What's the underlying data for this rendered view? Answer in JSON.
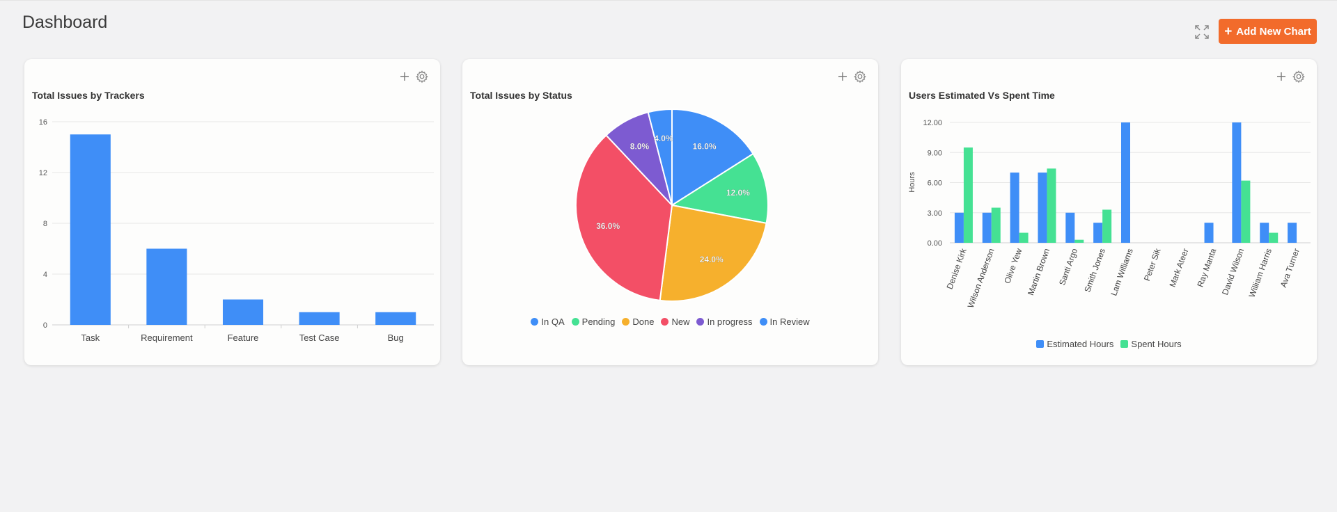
{
  "page": {
    "title": "Dashboard"
  },
  "toolbar": {
    "add_chart_label": "Add New Chart",
    "add_chart_icon": "plus-icon",
    "expand_icon": "expand-icon"
  },
  "colors": {
    "accent": "#f26b2b",
    "blue": "#3f8ef7",
    "green": "#45e193",
    "yellow": "#f6b02d",
    "red": "#f34f66",
    "purple": "#7d5bd1"
  },
  "cards": [
    {
      "title": "Total Issues by Trackers",
      "icons": [
        "plus-icon",
        "gear-icon"
      ]
    },
    {
      "title": "Total Issues by Status",
      "icons": [
        "plus-icon",
        "gear-icon"
      ]
    },
    {
      "title": "Users Estimated Vs Spent Time",
      "icons": [
        "plus-icon",
        "gear-icon"
      ]
    }
  ],
  "chart_data": [
    {
      "type": "bar",
      "title": "Total Issues by Trackers",
      "categories": [
        "Task",
        "Requirement",
        "Feature",
        "Test Case",
        "Bug"
      ],
      "values": [
        15,
        6,
        2,
        1,
        1
      ],
      "ylim": [
        0,
        16
      ],
      "yticks": [
        "0",
        "4",
        "8",
        "12",
        "16"
      ],
      "grid": true,
      "color": "#3f8ef7"
    },
    {
      "type": "pie",
      "title": "Total Issues by Status",
      "slices": [
        {
          "label": "In QA",
          "value": 16.0,
          "text": "16.0%",
          "color": "#3f8ef7"
        },
        {
          "label": "Pending",
          "value": 12.0,
          "text": "12.0%",
          "color": "#45e193"
        },
        {
          "label": "Done",
          "value": 24.0,
          "text": "24.0%",
          "color": "#f6b02d"
        },
        {
          "label": "New",
          "value": 36.0,
          "text": "36.0%",
          "color": "#f34f66"
        },
        {
          "label": "In progress",
          "value": 8.0,
          "text": "8.0%",
          "color": "#7d5bd1"
        },
        {
          "label": "In Review",
          "value": 4.0,
          "text": "4.0%",
          "color": "#3f8ef7"
        }
      ],
      "legend": "bottom"
    },
    {
      "type": "bar",
      "title": "Users Estimated Vs Spent Time",
      "ylabel": "Hours",
      "categories": [
        "Denise Kirk",
        "Wilson Anderson",
        "Olive Yew",
        "Martin Brown",
        "Santi Argo",
        "Smith Jones",
        "Lam Williams",
        "Peter Sik",
        "Mark Ateer",
        "Ray Manta",
        "David Wilson",
        "William Harris",
        "Ava Turner"
      ],
      "series": [
        {
          "name": "Estimated Hours",
          "color": "#3f8ef7",
          "values": [
            3,
            3,
            7,
            7,
            3,
            2,
            12,
            0,
            0,
            2,
            12,
            2,
            2
          ]
        },
        {
          "name": "Spent Hours",
          "color": "#45e193",
          "values": [
            9.5,
            3.5,
            1,
            7.4,
            0.3,
            3.3,
            0,
            0,
            0,
            0,
            6.2,
            1,
            0
          ]
        }
      ],
      "ylim": [
        0,
        12
      ],
      "yticks": [
        "0.00",
        "3.00",
        "6.00",
        "9.00",
        "12.00"
      ],
      "grid": true,
      "legend": "bottom"
    }
  ]
}
